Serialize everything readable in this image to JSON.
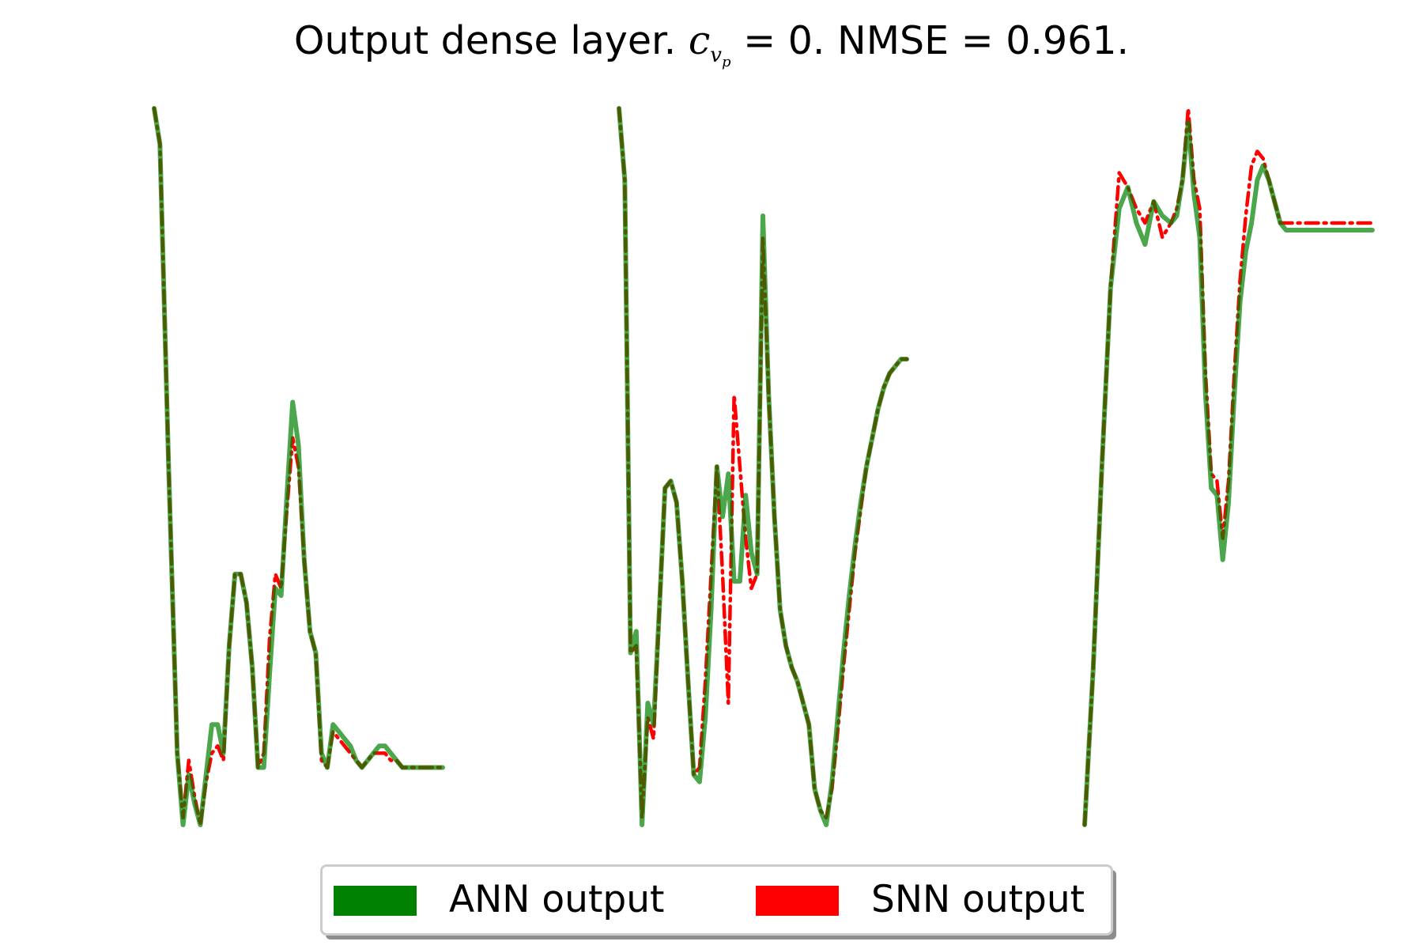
{
  "title": {
    "prefix": "Output dense layer.",
    "math_symbol": "c",
    "math_sub": "v",
    "math_subsub": "p",
    "math_rest": "= 0.",
    "suffix": "NMSE = 0.961."
  },
  "legend": {
    "placement": "bottom-center",
    "items": [
      {
        "label": "ANN output",
        "color": "#008000"
      },
      {
        "label": "SNN output",
        "color": "#ff0000"
      }
    ]
  },
  "chart_data": [
    {
      "type": "line",
      "axes_visible": false,
      "grid": false,
      "ylim": [
        0,
        1
      ],
      "series": [
        {
          "name": "ANN output",
          "color": "#008000",
          "style": "solid",
          "x": [
            0,
            0.02,
            0.05,
            0.08,
            0.1,
            0.12,
            0.14,
            0.16,
            0.18,
            0.2,
            0.22,
            0.24,
            0.26,
            0.28,
            0.3,
            0.32,
            0.34,
            0.36,
            0.38,
            0.4,
            0.42,
            0.44,
            0.46,
            0.48,
            0.5,
            0.52,
            0.54,
            0.56,
            0.58,
            0.6,
            0.62,
            0.64,
            0.66,
            0.68,
            0.7,
            0.72,
            0.74,
            0.76,
            0.78,
            0.8,
            0.82,
            0.84,
            0.86,
            0.88,
            0.9,
            0.92,
            0.94,
            0.96,
            0.98,
            1
          ],
          "y": [
            1,
            0.95,
            0.5,
            0.1,
            0.0,
            0.07,
            0.03,
            0.0,
            0.07,
            0.14,
            0.14,
            0.1,
            0.25,
            0.35,
            0.35,
            0.31,
            0.22,
            0.08,
            0.08,
            0.21,
            0.33,
            0.32,
            0.46,
            0.59,
            0.53,
            0.37,
            0.27,
            0.24,
            0.1,
            0.08,
            0.14,
            0.13,
            0.12,
            0.11,
            0.09,
            0.08,
            0.09,
            0.1,
            0.11,
            0.11,
            0.1,
            0.09,
            0.08,
            0.08,
            0.08,
            0.08,
            0.08,
            0.08,
            0.08,
            0.08
          ]
        },
        {
          "name": "SNN output",
          "color": "#ff0000",
          "style": "dashdot",
          "x": [
            0,
            0.02,
            0.05,
            0.08,
            0.1,
            0.12,
            0.14,
            0.16,
            0.18,
            0.2,
            0.22,
            0.24,
            0.26,
            0.28,
            0.3,
            0.32,
            0.34,
            0.36,
            0.38,
            0.4,
            0.42,
            0.44,
            0.46,
            0.48,
            0.5,
            0.52,
            0.54,
            0.56,
            0.58,
            0.6,
            0.62,
            0.64,
            0.66,
            0.68,
            0.7,
            0.72,
            0.74,
            0.76,
            0.78,
            0.8,
            0.82,
            0.84,
            0.86,
            0.88,
            0.9,
            0.92,
            0.94,
            0.96,
            0.98,
            1
          ],
          "y": [
            1,
            0.95,
            0.5,
            0.1,
            0.01,
            0.09,
            0.04,
            0.0,
            0.06,
            0.1,
            0.11,
            0.09,
            0.25,
            0.35,
            0.35,
            0.31,
            0.22,
            0.08,
            0.1,
            0.26,
            0.35,
            0.33,
            0.44,
            0.54,
            0.5,
            0.37,
            0.27,
            0.24,
            0.09,
            0.08,
            0.13,
            0.12,
            0.11,
            0.1,
            0.09,
            0.08,
            0.09,
            0.1,
            0.1,
            0.1,
            0.09,
            0.09,
            0.08,
            0.08,
            0.08,
            0.08,
            0.08,
            0.08,
            0.08,
            0.08
          ]
        }
      ]
    },
    {
      "type": "line",
      "axes_visible": false,
      "grid": false,
      "ylim": [
        0,
        1
      ],
      "series": [
        {
          "name": "ANN output",
          "color": "#008000",
          "style": "solid",
          "x": [
            0,
            0.02,
            0.04,
            0.06,
            0.08,
            0.1,
            0.12,
            0.14,
            0.16,
            0.18,
            0.2,
            0.22,
            0.24,
            0.26,
            0.28,
            0.3,
            0.32,
            0.34,
            0.36,
            0.38,
            0.4,
            0.42,
            0.44,
            0.46,
            0.48,
            0.5,
            0.52,
            0.54,
            0.56,
            0.58,
            0.6,
            0.62,
            0.64,
            0.66,
            0.68,
            0.7,
            0.72,
            0.74,
            0.76,
            0.78,
            0.8,
            0.82,
            0.84,
            0.86,
            0.88,
            0.9,
            0.92,
            0.94,
            0.96,
            0.98,
            1
          ],
          "y": [
            1,
            0.9,
            0.24,
            0.27,
            0.0,
            0.17,
            0.14,
            0.3,
            0.47,
            0.48,
            0.45,
            0.34,
            0.2,
            0.07,
            0.06,
            0.15,
            0.3,
            0.5,
            0.43,
            0.49,
            0.34,
            0.34,
            0.46,
            0.38,
            0.35,
            0.85,
            0.6,
            0.43,
            0.3,
            0.25,
            0.22,
            0.2,
            0.17,
            0.14,
            0.05,
            0.02,
            0.0,
            0.06,
            0.15,
            0.24,
            0.32,
            0.39,
            0.45,
            0.5,
            0.54,
            0.58,
            0.61,
            0.63,
            0.64,
            0.65,
            0.65
          ]
        },
        {
          "name": "SNN output",
          "color": "#ff0000",
          "style": "dashdot",
          "x": [
            0,
            0.02,
            0.04,
            0.06,
            0.08,
            0.1,
            0.12,
            0.14,
            0.16,
            0.18,
            0.2,
            0.22,
            0.24,
            0.26,
            0.28,
            0.3,
            0.32,
            0.34,
            0.36,
            0.38,
            0.4,
            0.42,
            0.44,
            0.46,
            0.48,
            0.5,
            0.52,
            0.54,
            0.56,
            0.58,
            0.6,
            0.62,
            0.64,
            0.66,
            0.68,
            0.7,
            0.72,
            0.74,
            0.76,
            0.78,
            0.8,
            0.82,
            0.84,
            0.86,
            0.88,
            0.9,
            0.92,
            0.94,
            0.96,
            0.98,
            1
          ],
          "y": [
            1,
            0.9,
            0.24,
            0.25,
            0.01,
            0.15,
            0.12,
            0.3,
            0.47,
            0.48,
            0.45,
            0.34,
            0.2,
            0.07,
            0.08,
            0.2,
            0.35,
            0.5,
            0.35,
            0.17,
            0.6,
            0.5,
            0.4,
            0.33,
            0.35,
            0.82,
            0.6,
            0.43,
            0.3,
            0.25,
            0.22,
            0.2,
            0.17,
            0.14,
            0.05,
            0.02,
            0.01,
            0.05,
            0.13,
            0.22,
            0.3,
            0.38,
            0.44,
            0.5,
            0.54,
            0.58,
            0.61,
            0.63,
            0.64,
            0.65,
            0.65
          ]
        }
      ]
    },
    {
      "type": "line",
      "axes_visible": false,
      "grid": false,
      "ylim": [
        0,
        1
      ],
      "series": [
        {
          "name": "ANN output",
          "color": "#008000",
          "style": "solid",
          "x": [
            0,
            0.03,
            0.06,
            0.09,
            0.12,
            0.15,
            0.18,
            0.21,
            0.24,
            0.27,
            0.3,
            0.32,
            0.34,
            0.36,
            0.38,
            0.4,
            0.42,
            0.44,
            0.46,
            0.48,
            0.5,
            0.52,
            0.54,
            0.56,
            0.58,
            0.6,
            0.62,
            0.64,
            0.66,
            0.68,
            0.7,
            0.72,
            0.74,
            0.76,
            0.78,
            0.8,
            0.82,
            0.84,
            0.86,
            0.88,
            0.9,
            0.92,
            0.94,
            0.96,
            0.98,
            1
          ],
          "y": [
            0.0,
            0.22,
            0.5,
            0.75,
            0.86,
            0.89,
            0.84,
            0.81,
            0.87,
            0.85,
            0.84,
            0.85,
            0.9,
            0.98,
            0.88,
            0.82,
            0.6,
            0.47,
            0.46,
            0.37,
            0.45,
            0.6,
            0.73,
            0.8,
            0.84,
            0.9,
            0.92,
            0.9,
            0.87,
            0.84,
            0.83,
            0.83,
            0.83,
            0.83,
            0.83,
            0.83,
            0.83,
            0.83,
            0.83,
            0.83,
            0.83,
            0.83,
            0.83,
            0.83,
            0.83,
            0.83
          ]
        },
        {
          "name": "SNN output",
          "color": "#ff0000",
          "style": "dashdot",
          "x": [
            0,
            0.03,
            0.06,
            0.09,
            0.12,
            0.15,
            0.18,
            0.21,
            0.24,
            0.27,
            0.3,
            0.32,
            0.34,
            0.36,
            0.38,
            0.4,
            0.42,
            0.44,
            0.46,
            0.48,
            0.5,
            0.52,
            0.54,
            0.56,
            0.58,
            0.6,
            0.62,
            0.64,
            0.66,
            0.68,
            0.7,
            0.72,
            0.74,
            0.76,
            0.78,
            0.8,
            0.82,
            0.84,
            0.86,
            0.88,
            0.9,
            0.92,
            0.94,
            0.96,
            0.98,
            1
          ],
          "y": [
            0.0,
            0.22,
            0.5,
            0.75,
            0.91,
            0.89,
            0.86,
            0.84,
            0.87,
            0.82,
            0.84,
            0.86,
            0.9,
            1.0,
            0.9,
            0.86,
            0.63,
            0.49,
            0.48,
            0.4,
            0.48,
            0.63,
            0.76,
            0.85,
            0.92,
            0.94,
            0.93,
            0.9,
            0.87,
            0.84,
            0.84,
            0.84,
            0.84,
            0.84,
            0.84,
            0.84,
            0.84,
            0.84,
            0.84,
            0.84,
            0.84,
            0.84,
            0.84,
            0.84,
            0.84,
            0.84
          ]
        }
      ]
    }
  ]
}
